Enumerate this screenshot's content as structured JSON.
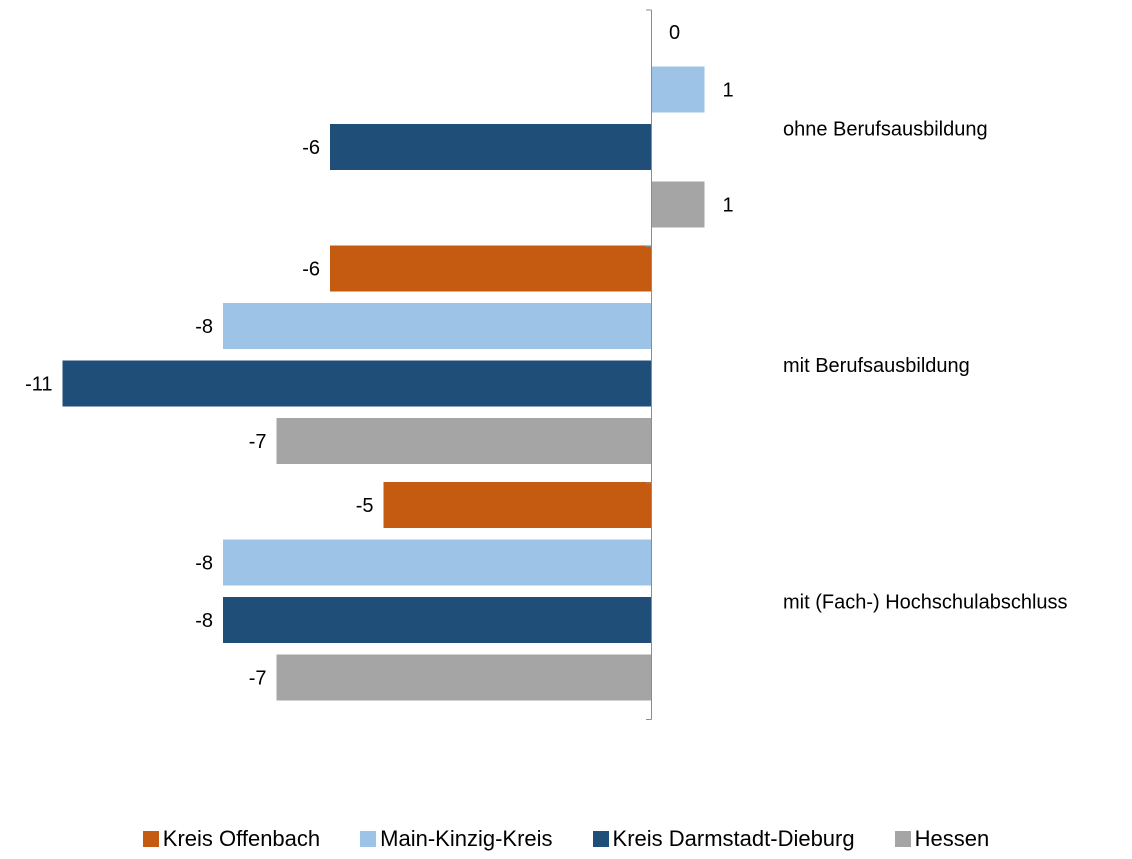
{
  "chart_data": {
    "type": "bar",
    "orientation": "horizontal",
    "title": "",
    "xlabel": "",
    "ylabel": "",
    "xlim": [
      -11,
      1
    ],
    "grid": false,
    "legend_position": "bottom",
    "categories": [
      "ohne Berufsausbildung",
      "mit Berufsausbildung",
      "mit (Fach-) Hochschulabschluss"
    ],
    "series": [
      {
        "name": "Kreis Offenbach",
        "color": "#c55a11",
        "values": [
          0,
          -6,
          -5
        ]
      },
      {
        "name": "Main-Kinzig-Kreis",
        "color": "#9dc3e6",
        "values": [
          1,
          -8,
          -8
        ]
      },
      {
        "name": "Kreis Darmstadt-Dieburg",
        "color": "#1f4e79",
        "values": [
          -6,
          -11,
          -8
        ]
      },
      {
        "name": "Hessen",
        "color": "#a5a5a5",
        "values": [
          1,
          -7,
          -7
        ]
      }
    ]
  }
}
